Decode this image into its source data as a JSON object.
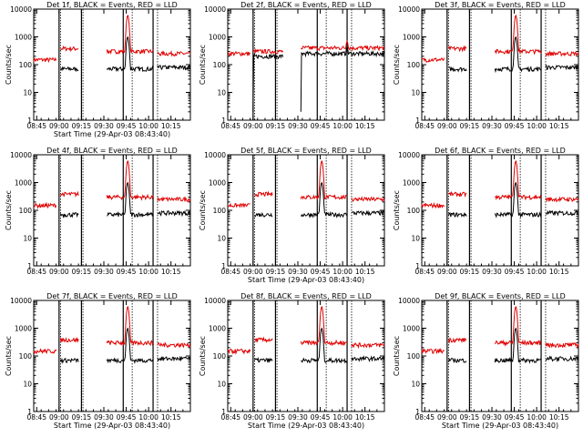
{
  "chart_data": {
    "type": "line",
    "y_scale": "log",
    "ylim": [
      1,
      10000
    ],
    "y_ticks": [
      "1",
      "10",
      "100",
      "1000",
      "10000"
    ],
    "ylabel": "Counts/sec",
    "xlabel": "Start Time (29-Apr-03 08:43:40)",
    "x_ticks": [
      "08:45",
      "09:00",
      "09:15",
      "09:30",
      "09:45",
      "10:00",
      "10:15"
    ],
    "x_range": [
      "08:43",
      "10:28"
    ],
    "series_colors": {
      "black": "#000000",
      "red": "#e00000"
    },
    "panels": [
      {
        "title": "Det 1f, BLACK = Events, RED = LLD",
        "xlabel": "Start Time (29-Apr-03 08:43:40)"
      },
      {
        "title": "Det 2f, BLACK = Events, RED = LLD",
        "xlabel": ""
      },
      {
        "title": "Det 3f, BLACK = Events, RED = LLD",
        "xlabel": ""
      },
      {
        "title": "Det 4f, BLACK = Events, RED = LLD",
        "xlabel": ""
      },
      {
        "title": "Det 5f, BLACK = Events, RED = LLD",
        "xlabel": "Start Time (29-Apr-03 08:43:40)"
      },
      {
        "title": "Det 6f, BLACK = Events, RED = LLD",
        "xlabel": ""
      },
      {
        "title": "Det 7f, BLACK = Events, RED = LLD",
        "xlabel": "Start Time (29-Apr-03 08:43:40)"
      },
      {
        "title": "Det 8f, BLACK = Events, RED = LLD",
        "xlabel": "Start Time (29-Apr-03 08:43:40)"
      },
      {
        "title": "Det 9f, BLACK = Events, RED = LLD",
        "xlabel": "Start Time (29-Apr-03 08:43:40)"
      }
    ],
    "vertical_lines_solid": [
      "09:00",
      "09:15",
      "09:43",
      "10:03"
    ],
    "vertical_lines_dotted": [
      "09:01",
      "09:16",
      "09:49",
      "10:06"
    ],
    "segments_typical": [
      {
        "x": [
          "08:43",
          "08:58"
        ],
        "red": 150,
        "black": null
      },
      {
        "x": [
          "09:01",
          "09:13"
        ],
        "red": 380,
        "black": 70
      },
      {
        "x": [
          "09:32",
          "10:03"
        ],
        "red": 300,
        "black": 70,
        "peak_x": "09:46",
        "peak_red": 6000,
        "peak_black": 1000
      },
      {
        "x": [
          "10:06",
          "10:28"
        ],
        "red": 250,
        "black": 80
      }
    ],
    "segments_det2": [
      {
        "x": [
          "08:43",
          "08:58"
        ],
        "red": 250,
        "black": null
      },
      {
        "x": [
          "09:00",
          "09:20"
        ],
        "red": 300,
        "black": 200
      },
      {
        "x": [
          "09:32",
          "10:28"
        ],
        "red": 400,
        "black": 250,
        "peak_x": "10:03",
        "peak_red": 700,
        "peak_black": 450
      }
    ]
  }
}
